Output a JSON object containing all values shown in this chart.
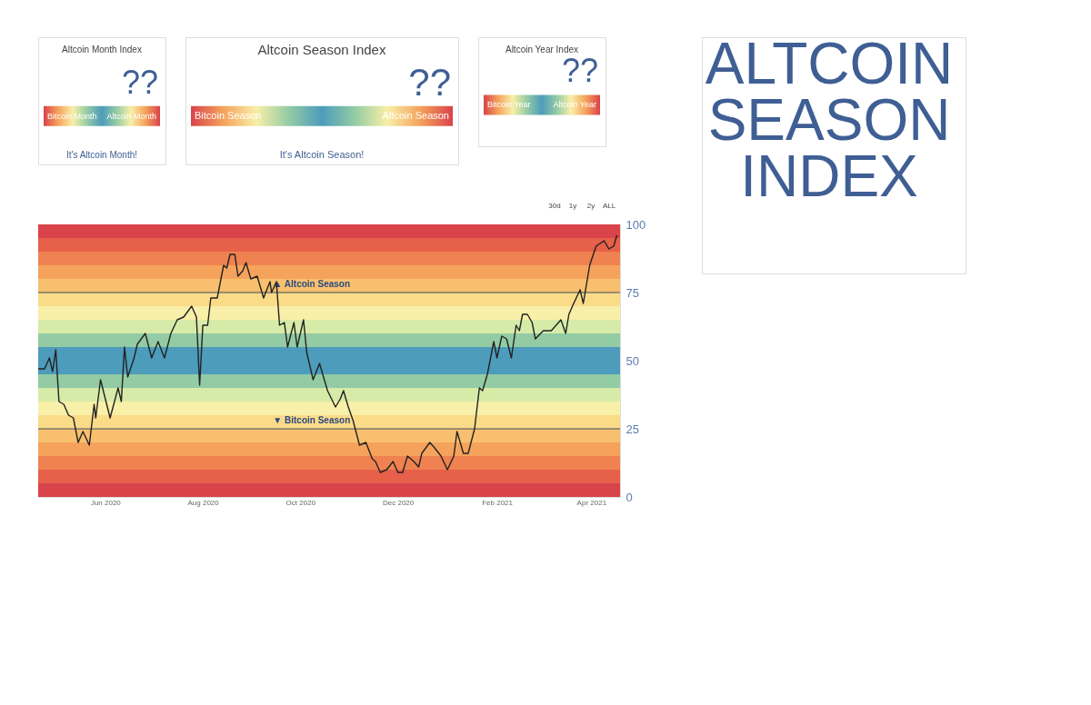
{
  "chart_data": [
    {
      "type": "other",
      "title": "Altcoin Month Index",
      "annotations": [
        "??",
        "Bitcoin Month",
        "Altcoin Month",
        "It's Altcoin Month!"
      ]
    },
    {
      "type": "other",
      "title": "Altcoin Season Index",
      "annotations": [
        "??",
        "Bitcoin Season",
        "Altcoin Season",
        "It's Altcoin Season!"
      ]
    },
    {
      "type": "other",
      "title": "Altcoin Year Index",
      "annotations": [
        "??",
        "Bitcoin Year",
        "Altcoin Year"
      ]
    },
    {
      "type": "line",
      "x": [
        "2020-04-20",
        "2020-04-24",
        "2020-04-27",
        "2020-04-29",
        "2020-05-01",
        "2020-05-03",
        "2020-05-06",
        "2020-05-09",
        "2020-05-12",
        "2020-05-15",
        "2020-05-18",
        "2020-05-22",
        "2020-05-25",
        "2020-05-26",
        "2020-05-29",
        "2020-06-01",
        "2020-06-04",
        "2020-06-09",
        "2020-06-11",
        "2020-06-13",
        "2020-06-15",
        "2020-06-19",
        "2020-06-21",
        "2020-06-26",
        "2020-06-30",
        "2020-07-04",
        "2020-07-08",
        "2020-07-12",
        "2020-07-16",
        "2020-07-20",
        "2020-07-25",
        "2020-07-28",
        "2020-07-30",
        "2020-08-01",
        "2020-08-04",
        "2020-08-06",
        "2020-08-10",
        "2020-08-14",
        "2020-08-16",
        "2020-08-18",
        "2020-08-21",
        "2020-08-23",
        "2020-08-26",
        "2020-08-28",
        "2020-08-31",
        "2020-09-04",
        "2020-09-08",
        "2020-09-12",
        "2020-09-13",
        "2020-09-16",
        "2020-09-18",
        "2020-09-21",
        "2020-09-23",
        "2020-09-27",
        "2020-09-29",
        "2020-10-03",
        "2020-10-05",
        "2020-10-09",
        "2020-10-13",
        "2020-10-18",
        "2020-10-23",
        "2020-10-26",
        "2020-10-28",
        "2020-10-31",
        "2020-11-03",
        "2020-11-07",
        "2020-11-11",
        "2020-11-15",
        "2020-11-17",
        "2020-11-20",
        "2020-11-24",
        "2020-11-28",
        "2020-12-01",
        "2020-12-04",
        "2020-12-07",
        "2020-12-11",
        "2020-12-14",
        "2020-12-16",
        "2020-12-21",
        "2020-12-24",
        "2020-12-28",
        "2021-01-01",
        "2021-01-05",
        "2021-01-07",
        "2021-01-11",
        "2021-01-14",
        "2021-01-18",
        "2021-01-21",
        "2021-01-23",
        "2021-01-26",
        "2021-01-30",
        "2021-02-01",
        "2021-02-04",
        "2021-02-07",
        "2021-02-10",
        "2021-02-13",
        "2021-02-15",
        "2021-02-17",
        "2021-02-20",
        "2021-02-23",
        "2021-02-25",
        "2021-03-02",
        "2021-03-07",
        "2021-03-10",
        "2021-03-13",
        "2021-03-16",
        "2021-03-18",
        "2021-03-21",
        "2021-03-25",
        "2021-03-27",
        "2021-03-29",
        "2021-03-31",
        "2021-04-04",
        "2021-04-09",
        "2021-04-12",
        "2021-04-15",
        "2021-04-17"
      ],
      "series": [
        {
          "color": "#222222",
          "values": [
            47,
            47,
            51,
            46,
            54,
            35,
            34,
            30,
            29,
            20,
            24,
            19,
            34,
            29,
            43,
            36,
            29,
            40,
            35,
            55,
            44,
            51,
            56,
            60,
            51,
            57,
            51,
            60,
            65,
            66,
            70,
            66,
            41,
            63,
            63,
            73,
            73,
            85,
            84,
            89,
            89,
            81,
            83,
            86,
            80,
            81,
            73,
            79,
            75,
            79,
            63,
            64,
            55,
            64,
            55,
            65,
            53,
            43,
            49,
            39,
            33,
            36,
            39,
            33,
            28,
            19,
            20,
            14,
            13,
            9,
            10,
            13,
            9,
            9,
            15,
            13,
            11,
            16,
            20,
            18,
            15,
            10,
            15,
            24,
            16,
            16,
            25,
            40,
            39,
            45,
            57,
            51,
            59,
            58,
            51,
            63,
            61,
            67,
            67,
            64,
            58,
            61,
            61,
            63,
            65,
            60,
            67,
            71,
            76,
            71,
            78,
            85,
            92,
            94,
            91,
            92,
            96
          ]
        }
      ],
      "xlim": [
        "2020-04-20",
        "2021-04-19"
      ],
      "xticks": [
        {
          "value": "2020-06-01",
          "label": "Jun 2020"
        },
        {
          "value": "2020-08-01",
          "label": "Aug 2020"
        },
        {
          "value": "2020-10-01",
          "label": "Oct 2020"
        },
        {
          "value": "2020-12-01",
          "label": "Dec 2020"
        },
        {
          "value": "2021-02-01",
          "label": "Feb 2021"
        },
        {
          "value": "2021-04-01",
          "label": "Apr 2021"
        }
      ],
      "ylim": [
        0,
        100
      ],
      "yticks": [
        0,
        25,
        50,
        75,
        100
      ],
      "ref_lines": [
        {
          "axis": "y",
          "value": 75,
          "label": "▲ Altcoin Season",
          "color": "#3d4f63"
        },
        {
          "axis": "y",
          "value": 25,
          "label": "▼ Bitcoin Season",
          "color": "#3d4f63"
        }
      ],
      "bands": [
        {
          "axis": "y",
          "from": 0,
          "to": 5,
          "color": "#d9434a"
        },
        {
          "axis": "y",
          "from": 5,
          "to": 10,
          "color": "#e6604a"
        },
        {
          "axis": "y",
          "from": 10,
          "to": 15,
          "color": "#ef8250"
        },
        {
          "axis": "y",
          "from": 15,
          "to": 20,
          "color": "#f5a35c"
        },
        {
          "axis": "y",
          "from": 20,
          "to": 25,
          "color": "#f8c06e"
        },
        {
          "axis": "y",
          "from": 25,
          "to": 30,
          "color": "#fadb88"
        },
        {
          "axis": "y",
          "from": 30,
          "to": 35,
          "color": "#f8efa8"
        },
        {
          "axis": "y",
          "from": 35,
          "to": 40,
          "color": "#d7eba8"
        },
        {
          "axis": "y",
          "from": 40,
          "to": 45,
          "color": "#93cba4"
        },
        {
          "axis": "y",
          "from": 45,
          "to": 50,
          "color": "#4d9cbb"
        },
        {
          "axis": "y",
          "from": 50,
          "to": 55,
          "color": "#4d9cbb"
        },
        {
          "axis": "y",
          "from": 55,
          "to": 60,
          "color": "#93cba4"
        },
        {
          "axis": "y",
          "from": 60,
          "to": 65,
          "color": "#d7eba8"
        },
        {
          "axis": "y",
          "from": 65,
          "to": 70,
          "color": "#f8efa8"
        },
        {
          "axis": "y",
          "from": 70,
          "to": 75,
          "color": "#fadb88"
        },
        {
          "axis": "y",
          "from": 75,
          "to": 80,
          "color": "#f8c06e"
        },
        {
          "axis": "y",
          "from": 80,
          "to": 85,
          "color": "#f5a35c"
        },
        {
          "axis": "y",
          "from": 85,
          "to": 90,
          "color": "#ef8250"
        },
        {
          "axis": "y",
          "from": 90,
          "to": 95,
          "color": "#e6604a"
        },
        {
          "axis": "y",
          "from": 95,
          "to": 100,
          "color": "#d9434a"
        }
      ],
      "annotations": [
        "30d",
        "1y",
        "2y",
        "ALL"
      ],
      "marker": "none",
      "line_style": "solid"
    },
    {
      "type": "other",
      "title": "ALTCOIN SEASON INDEX"
    }
  ]
}
